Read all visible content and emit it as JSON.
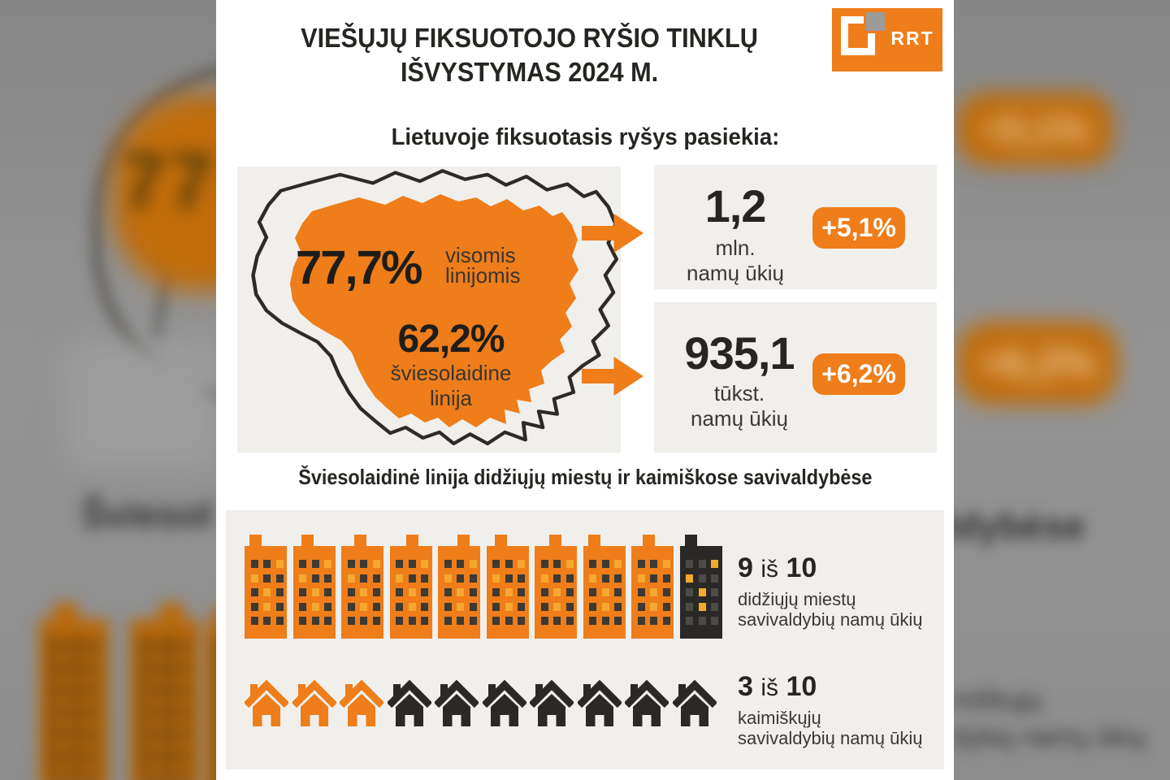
{
  "header": {
    "title_line1": "VIEŠŲJŲ FIKSUOTOJO RYŠIO TINKLŲ",
    "title_line2": "IŠVYSTYMAS 2024 M.",
    "logo_text": "RRT"
  },
  "subtitle": "Lietuvoje fiksuotasis ryšys pasiekia:",
  "map_stats": {
    "all_lines_value": "77,7%",
    "all_lines_label1": "visomis",
    "all_lines_label2": "linijomis",
    "fiber_value": "62,2%",
    "fiber_label1": "šviesolaidine",
    "fiber_label2": "linija"
  },
  "cards": {
    "households_total": {
      "value": "1,2",
      "unit": "mln.",
      "label": "namų ūkių",
      "badge": "+5,1%"
    },
    "households_fiber": {
      "value": "935,1",
      "unit": "tūkst.",
      "label": "namų ūkių",
      "badge": "+6,2%"
    }
  },
  "section": {
    "title": "Šviesolaidinė linija didžiųjų miestų ir kaimiškose savivaldybėse"
  },
  "pictographs": {
    "buildings": {
      "highlighted": 9,
      "total": 10,
      "count_text": "9",
      "of_text": "iš",
      "total_text": "10",
      "label_line1": "didžiųjų miestų",
      "label_line2": "savivaldybių namų ūkių",
      "window_rows": 5,
      "window_cols": 3,
      "yellow_windows": [
        2,
        3,
        7,
        10
      ]
    },
    "houses": {
      "highlighted": 3,
      "total": 10,
      "count_text": "3",
      "of_text": "iš",
      "total_text": "10",
      "label_line1": "kaimiškųjų",
      "label_line2": "savivaldybių namų ūkių"
    }
  },
  "colors": {
    "accent_orange": "#ee7d1a",
    "dark": "#2b2927",
    "panel_gray": "#f0efec",
    "window_dark": "#3e3a33",
    "window_yellow": "#f5a82d",
    "badge_text": "#ffffff",
    "background_gray": "#8c8c8c"
  },
  "background": {
    "left_map_number": "77",
    "left_text_fragment": "Šviesol",
    "right_badge1": "+5,1%",
    "right_badge2": "+6,2%",
    "right_text_fragment": "ldybėse",
    "right_bottom_fragment1": "miškųjų",
    "right_bottom_fragment2": "dybių namų ūkių"
  },
  "chart_data": [
    {
      "type": "pictograph",
      "title": "Lietuvoje fiksuotasis ryšys pasiekia",
      "items": [
        {
          "label": "visomis linijomis",
          "coverage_pct": 77.7,
          "households": "1,2 mln. namų ūkių",
          "yoy_change_pct": 5.1
        },
        {
          "label": "šviesolaidine linija",
          "coverage_pct": 62.2,
          "households": "935,1 tūkst. namų ūkių",
          "yoy_change_pct": 6.2
        }
      ]
    },
    {
      "type": "pictograph",
      "title": "Šviesolaidinė linija didžiųjų miestų ir kaimiškose savivaldybėse",
      "series": [
        {
          "label": "didžiųjų miestų savivaldybių namų ūkių",
          "value": 9,
          "total": 10
        },
        {
          "label": "kaimiškųjų savivaldybių namų ūkių",
          "value": 3,
          "total": 10
        }
      ]
    }
  ]
}
